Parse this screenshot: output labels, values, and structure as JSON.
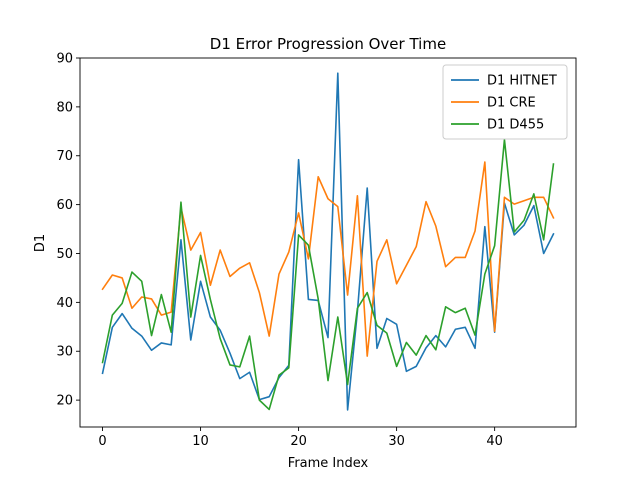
{
  "chart_data": {
    "type": "line",
    "title": "D1 Error Progression Over Time",
    "xlabel": "Frame Index",
    "ylabel": "D1",
    "xlim": [
      -2.3,
      48.3
    ],
    "ylim": [
      14.5,
      90.0
    ],
    "xticks": [
      0,
      10,
      20,
      30,
      40
    ],
    "yticks": [
      20,
      30,
      40,
      50,
      60,
      70,
      80,
      90
    ],
    "grid": false,
    "legend_position": "top-right",
    "x": [
      0,
      1,
      2,
      3,
      4,
      5,
      6,
      7,
      8,
      9,
      10,
      11,
      12,
      13,
      14,
      15,
      16,
      17,
      18,
      19,
      20,
      21,
      22,
      23,
      24,
      25,
      26,
      27,
      28,
      29,
      30,
      31,
      32,
      33,
      34,
      35,
      36,
      37,
      38,
      39,
      40,
      41,
      42,
      43,
      44,
      45,
      46
    ],
    "series": [
      {
        "name": "D1 HITNET",
        "color": "#1f77b4",
        "values": [
          25.5,
          34.9,
          37.7,
          34.7,
          33.1,
          30.2,
          31.7,
          31.3,
          52.8,
          32.3,
          44.3,
          37.0,
          34.3,
          29.6,
          24.4,
          25.7,
          20.1,
          20.7,
          24.6,
          27.1,
          69.2,
          40.6,
          40.4,
          32.8,
          86.9,
          18.0,
          38.1,
          63.4,
          30.6,
          36.7,
          35.5,
          25.9,
          26.9,
          30.7,
          33.2,
          30.9,
          34.5,
          34.9,
          30.6,
          55.5,
          33.9,
          60.3,
          53.8,
          55.8,
          59.8,
          50.0,
          54.0
        ]
      },
      {
        "name": "D1 CRE",
        "color": "#ff7f0e",
        "values": [
          42.7,
          45.6,
          45.0,
          38.8,
          41.1,
          40.7,
          37.4,
          38.0,
          59.4,
          50.7,
          54.3,
          43.5,
          50.7,
          45.3,
          47.0,
          48.1,
          42.0,
          33.1,
          45.8,
          50.3,
          58.3,
          48.9,
          65.7,
          61.2,
          59.6,
          41.5,
          61.8,
          29.0,
          48.4,
          52.8,
          43.8,
          47.6,
          51.4,
          60.6,
          55.6,
          47.3,
          49.2,
          49.2,
          54.6,
          68.7,
          34.1,
          61.5,
          60.1,
          60.8,
          61.5,
          61.5,
          57.3
        ]
      },
      {
        "name": "D1 D455",
        "color": "#2ca02c",
        "values": [
          27.7,
          37.4,
          39.8,
          46.2,
          44.3,
          33.2,
          41.6,
          33.9,
          60.5,
          37.0,
          49.6,
          40.6,
          32.6,
          27.2,
          26.8,
          33.1,
          20.0,
          18.1,
          25.1,
          26.6,
          53.8,
          51.7,
          40.7,
          24.0,
          37.0,
          23.2,
          38.8,
          42.0,
          35.3,
          33.7,
          26.9,
          31.8,
          29.2,
          33.2,
          30.3,
          39.1,
          37.9,
          38.8,
          33.3,
          45.8,
          51.6,
          73.3,
          54.4,
          56.8,
          62.2,
          52.8,
          68.3
        ]
      }
    ]
  }
}
